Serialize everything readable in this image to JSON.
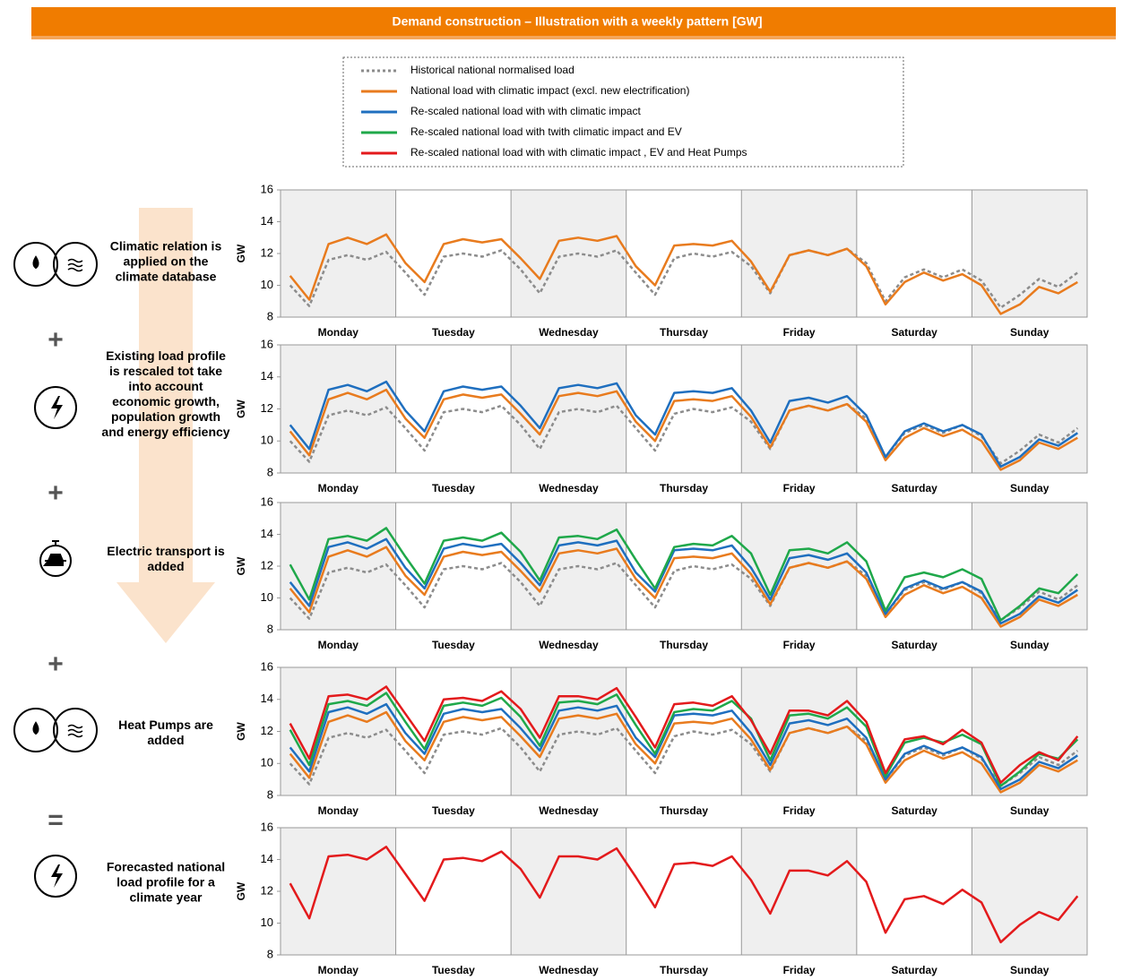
{
  "header": {
    "title": "Demand construction – Illustration with a weekly pattern [GW]"
  },
  "steps": [
    "Climatic relation is applied on the climate database",
    "Existing load profile is rescaled tot take into account economic growth, population growth and energy efficiency",
    "Electric transport is added",
    "Heat Pumps are added",
    "Forecasted national load profile for a climate year"
  ],
  "operators": [
    "+",
    "+",
    "+",
    "="
  ],
  "chart_data": [
    {
      "type": "line",
      "ylabel": "GW",
      "ylim": [
        8,
        16
      ],
      "yticks": [
        8,
        10,
        12,
        14,
        16
      ],
      "categories": [
        null,
        null,
        null,
        "Monday",
        null,
        null,
        null,
        null,
        null,
        "Tuesday",
        null,
        null,
        null,
        null,
        null,
        "Wednesday",
        null,
        null,
        null,
        null,
        null,
        "Thursday",
        null,
        null,
        null,
        null,
        null,
        "Friday",
        null,
        null,
        null,
        null,
        null,
        "Saturday",
        null,
        null,
        null,
        null,
        null,
        "Sunday",
        null,
        null
      ],
      "series": [
        {
          "name": "Historical national normalised load",
          "color": "#8c8c8c",
          "dashed": true,
          "values": [
            10.0,
            8.7,
            11.6,
            11.9,
            11.6,
            12.1,
            10.8,
            9.4,
            11.8,
            12.0,
            11.8,
            12.2,
            11.0,
            9.5,
            11.8,
            12.0,
            11.8,
            12.2,
            10.8,
            9.4,
            11.7,
            12.0,
            11.8,
            12.1,
            11.2,
            9.5,
            11.9,
            12.2,
            11.9,
            12.3,
            11.4,
            9.0,
            10.5,
            11.0,
            10.5,
            11.0,
            10.3,
            8.6,
            9.4,
            10.4,
            9.9,
            10.8
          ]
        },
        {
          "name": "National load with climatic impact (excl. new electrification)",
          "color": "#e87b1e",
          "values": [
            10.6,
            9.1,
            12.6,
            13.0,
            12.6,
            13.2,
            11.4,
            10.2,
            12.6,
            12.9,
            12.7,
            12.9,
            11.7,
            10.4,
            12.8,
            13.0,
            12.8,
            13.1,
            11.2,
            10.0,
            12.5,
            12.6,
            12.5,
            12.8,
            11.5,
            9.6,
            11.9,
            12.2,
            11.9,
            12.3,
            11.2,
            8.8,
            10.2,
            10.8,
            10.3,
            10.7,
            10.0,
            8.2,
            8.8,
            9.9,
            9.5,
            10.2
          ]
        }
      ]
    },
    {
      "type": "line",
      "ylabel": "GW",
      "ylim": [
        8,
        16
      ],
      "yticks": [
        8,
        10,
        12,
        14,
        16
      ],
      "categories": [
        null,
        null,
        null,
        "Monday",
        null,
        null,
        null,
        null,
        null,
        "Tuesday",
        null,
        null,
        null,
        null,
        null,
        "Wednesday",
        null,
        null,
        null,
        null,
        null,
        "Thursday",
        null,
        null,
        null,
        null,
        null,
        "Friday",
        null,
        null,
        null,
        null,
        null,
        "Saturday",
        null,
        null,
        null,
        null,
        null,
        "Sunday",
        null,
        null
      ],
      "series": [
        {
          "name": "Historical national normalised load",
          "color": "#8c8c8c",
          "dashed": true,
          "values": [
            10.0,
            8.7,
            11.6,
            11.9,
            11.6,
            12.1,
            10.8,
            9.4,
            11.8,
            12.0,
            11.8,
            12.2,
            11.0,
            9.5,
            11.8,
            12.0,
            11.8,
            12.2,
            10.8,
            9.4,
            11.7,
            12.0,
            11.8,
            12.1,
            11.2,
            9.5,
            11.9,
            12.2,
            11.9,
            12.3,
            11.4,
            9.0,
            10.5,
            11.0,
            10.5,
            11.0,
            10.3,
            8.6,
            9.4,
            10.4,
            9.9,
            10.8
          ]
        },
        {
          "name": "National load with climatic impact (excl. new electrification)",
          "color": "#e87b1e",
          "values": [
            10.6,
            9.1,
            12.6,
            13.0,
            12.6,
            13.2,
            11.4,
            10.2,
            12.6,
            12.9,
            12.7,
            12.9,
            11.7,
            10.4,
            12.8,
            13.0,
            12.8,
            13.1,
            11.2,
            10.0,
            12.5,
            12.6,
            12.5,
            12.8,
            11.5,
            9.6,
            11.9,
            12.2,
            11.9,
            12.3,
            11.2,
            8.8,
            10.2,
            10.8,
            10.3,
            10.7,
            10.0,
            8.2,
            8.8,
            9.9,
            9.5,
            10.2
          ]
        },
        {
          "name": "Re-scaled national load with with climatic impact",
          "color": "#1f6fbf",
          "values": [
            11.0,
            9.5,
            13.2,
            13.5,
            13.1,
            13.7,
            11.9,
            10.6,
            13.1,
            13.4,
            13.2,
            13.4,
            12.2,
            10.8,
            13.3,
            13.5,
            13.3,
            13.6,
            11.6,
            10.4,
            13.0,
            13.1,
            13.0,
            13.3,
            11.9,
            9.9,
            12.5,
            12.7,
            12.4,
            12.8,
            11.6,
            9.0,
            10.6,
            11.1,
            10.6,
            11.0,
            10.4,
            8.4,
            9.0,
            10.1,
            9.7,
            10.5
          ]
        }
      ]
    },
    {
      "type": "line",
      "ylabel": "GW",
      "ylim": [
        8,
        16
      ],
      "yticks": [
        8,
        10,
        12,
        14,
        16
      ],
      "categories": [
        null,
        null,
        null,
        "Monday",
        null,
        null,
        null,
        null,
        null,
        "Tuesday",
        null,
        null,
        null,
        null,
        null,
        "Wednesday",
        null,
        null,
        null,
        null,
        null,
        "Thursday",
        null,
        null,
        null,
        null,
        null,
        "Friday",
        null,
        null,
        null,
        null,
        null,
        "Saturday",
        null,
        null,
        null,
        null,
        null,
        "Sunday",
        null,
        null
      ],
      "series": [
        {
          "name": "Historical national normalised load",
          "color": "#8c8c8c",
          "dashed": true,
          "values": [
            10.0,
            8.7,
            11.6,
            11.9,
            11.6,
            12.1,
            10.8,
            9.4,
            11.8,
            12.0,
            11.8,
            12.2,
            11.0,
            9.5,
            11.8,
            12.0,
            11.8,
            12.2,
            10.8,
            9.4,
            11.7,
            12.0,
            11.8,
            12.1,
            11.2,
            9.5,
            11.9,
            12.2,
            11.9,
            12.3,
            11.4,
            9.0,
            10.5,
            11.0,
            10.5,
            11.0,
            10.3,
            8.6,
            9.4,
            10.4,
            9.9,
            10.8
          ]
        },
        {
          "name": "National load with climatic impact (excl. new electrification)",
          "color": "#e87b1e",
          "values": [
            10.6,
            9.1,
            12.6,
            13.0,
            12.6,
            13.2,
            11.4,
            10.2,
            12.6,
            12.9,
            12.7,
            12.9,
            11.7,
            10.4,
            12.8,
            13.0,
            12.8,
            13.1,
            11.2,
            10.0,
            12.5,
            12.6,
            12.5,
            12.8,
            11.5,
            9.6,
            11.9,
            12.2,
            11.9,
            12.3,
            11.2,
            8.8,
            10.2,
            10.8,
            10.3,
            10.7,
            10.0,
            8.2,
            8.8,
            9.9,
            9.5,
            10.2
          ]
        },
        {
          "name": "Re-scaled national load with with climatic impact",
          "color": "#1f6fbf",
          "values": [
            11.0,
            9.5,
            13.2,
            13.5,
            13.1,
            13.7,
            11.9,
            10.6,
            13.1,
            13.4,
            13.2,
            13.4,
            12.2,
            10.8,
            13.3,
            13.5,
            13.3,
            13.6,
            11.6,
            10.4,
            13.0,
            13.1,
            13.0,
            13.3,
            11.9,
            9.9,
            12.5,
            12.7,
            12.4,
            12.8,
            11.6,
            9.0,
            10.6,
            11.1,
            10.6,
            11.0,
            10.4,
            8.4,
            9.0,
            10.1,
            9.7,
            10.5
          ]
        },
        {
          "name": "Re-scaled national load with twith climatic impact and EV",
          "color": "#1fa84a",
          "values": [
            12.1,
            9.9,
            13.7,
            13.9,
            13.6,
            14.4,
            12.6,
            10.9,
            13.6,
            13.8,
            13.6,
            14.1,
            12.9,
            11.1,
            13.8,
            13.9,
            13.7,
            14.3,
            12.4,
            10.6,
            13.2,
            13.4,
            13.3,
            13.9,
            12.8,
            10.2,
            13.0,
            13.1,
            12.8,
            13.5,
            12.3,
            9.2,
            11.3,
            11.6,
            11.3,
            11.8,
            11.2,
            8.6,
            9.5,
            10.6,
            10.3,
            11.5
          ]
        }
      ]
    },
    {
      "type": "line",
      "ylabel": "GW",
      "ylim": [
        8,
        16
      ],
      "yticks": [
        8,
        10,
        12,
        14,
        16
      ],
      "categories": [
        null,
        null,
        null,
        "Monday",
        null,
        null,
        null,
        null,
        null,
        "Tuesday",
        null,
        null,
        null,
        null,
        null,
        "Wednesday",
        null,
        null,
        null,
        null,
        null,
        "Thursday",
        null,
        null,
        null,
        null,
        null,
        "Friday",
        null,
        null,
        null,
        null,
        null,
        "Saturday",
        null,
        null,
        null,
        null,
        null,
        "Sunday",
        null,
        null
      ],
      "series": [
        {
          "name": "Historical national normalised load",
          "color": "#8c8c8c",
          "dashed": true,
          "values": [
            10.0,
            8.7,
            11.6,
            11.9,
            11.6,
            12.1,
            10.8,
            9.4,
            11.8,
            12.0,
            11.8,
            12.2,
            11.0,
            9.5,
            11.8,
            12.0,
            11.8,
            12.2,
            10.8,
            9.4,
            11.7,
            12.0,
            11.8,
            12.1,
            11.2,
            9.5,
            11.9,
            12.2,
            11.9,
            12.3,
            11.4,
            9.0,
            10.5,
            11.0,
            10.5,
            11.0,
            10.3,
            8.6,
            9.4,
            10.4,
            9.9,
            10.8
          ]
        },
        {
          "name": "National load with climatic impact (excl. new electrification)",
          "color": "#e87b1e",
          "values": [
            10.6,
            9.1,
            12.6,
            13.0,
            12.6,
            13.2,
            11.4,
            10.2,
            12.6,
            12.9,
            12.7,
            12.9,
            11.7,
            10.4,
            12.8,
            13.0,
            12.8,
            13.1,
            11.2,
            10.0,
            12.5,
            12.6,
            12.5,
            12.8,
            11.5,
            9.6,
            11.9,
            12.2,
            11.9,
            12.3,
            11.2,
            8.8,
            10.2,
            10.8,
            10.3,
            10.7,
            10.0,
            8.2,
            8.8,
            9.9,
            9.5,
            10.2
          ]
        },
        {
          "name": "Re-scaled national load with with climatic impact",
          "color": "#1f6fbf",
          "values": [
            11.0,
            9.5,
            13.2,
            13.5,
            13.1,
            13.7,
            11.9,
            10.6,
            13.1,
            13.4,
            13.2,
            13.4,
            12.2,
            10.8,
            13.3,
            13.5,
            13.3,
            13.6,
            11.6,
            10.4,
            13.0,
            13.1,
            13.0,
            13.3,
            11.9,
            9.9,
            12.5,
            12.7,
            12.4,
            12.8,
            11.6,
            9.0,
            10.6,
            11.1,
            10.6,
            11.0,
            10.4,
            8.4,
            9.0,
            10.1,
            9.7,
            10.5
          ]
        },
        {
          "name": "Re-scaled national load with twith climatic impact and EV",
          "color": "#1fa84a",
          "values": [
            12.1,
            9.9,
            13.7,
            13.9,
            13.6,
            14.4,
            12.6,
            10.9,
            13.6,
            13.8,
            13.6,
            14.1,
            12.9,
            11.1,
            13.8,
            13.9,
            13.7,
            14.3,
            12.4,
            10.6,
            13.2,
            13.4,
            13.3,
            13.9,
            12.8,
            10.2,
            13.0,
            13.1,
            12.8,
            13.5,
            12.3,
            9.2,
            11.3,
            11.6,
            11.3,
            11.8,
            11.2,
            8.6,
            9.5,
            10.6,
            10.3,
            11.5
          ]
        },
        {
          "name": "Re-scaled national load with with climatic impact , EV and Heat Pumps",
          "color": "#e31a1c",
          "values": [
            12.5,
            10.3,
            14.2,
            14.3,
            14.0,
            14.8,
            13.1,
            11.4,
            14.0,
            14.1,
            13.9,
            14.5,
            13.4,
            11.6,
            14.2,
            14.2,
            14.0,
            14.7,
            12.9,
            11.0,
            13.7,
            13.8,
            13.6,
            14.2,
            12.7,
            10.6,
            13.3,
            13.3,
            13.0,
            13.9,
            12.6,
            9.4,
            11.5,
            11.7,
            11.2,
            12.1,
            11.3,
            8.8,
            9.9,
            10.7,
            10.2,
            11.7
          ]
        }
      ]
    },
    {
      "type": "line",
      "ylabel": "GW",
      "ylim": [
        8,
        16
      ],
      "yticks": [
        8,
        10,
        12,
        14,
        16
      ],
      "categories": [
        null,
        null,
        null,
        "Monday",
        null,
        null,
        null,
        null,
        null,
        "Tuesday",
        null,
        null,
        null,
        null,
        null,
        "Wednesday",
        null,
        null,
        null,
        null,
        null,
        "Thursday",
        null,
        null,
        null,
        null,
        null,
        "Friday",
        null,
        null,
        null,
        null,
        null,
        "Saturday",
        null,
        null,
        null,
        null,
        null,
        "Sunday",
        null,
        null
      ],
      "series": [
        {
          "name": "Re-scaled national load with with climatic impact , EV and Heat Pumps",
          "color": "#e31a1c",
          "values": [
            12.5,
            10.3,
            14.2,
            14.3,
            14.0,
            14.8,
            13.1,
            11.4,
            14.0,
            14.1,
            13.9,
            14.5,
            13.4,
            11.6,
            14.2,
            14.2,
            14.0,
            14.7,
            12.9,
            11.0,
            13.7,
            13.8,
            13.6,
            14.2,
            12.7,
            10.6,
            13.3,
            13.3,
            13.0,
            13.9,
            12.6,
            9.4,
            11.5,
            11.7,
            11.2,
            12.1,
            11.3,
            8.8,
            9.9,
            10.7,
            10.2,
            11.7
          ]
        }
      ]
    }
  ]
}
